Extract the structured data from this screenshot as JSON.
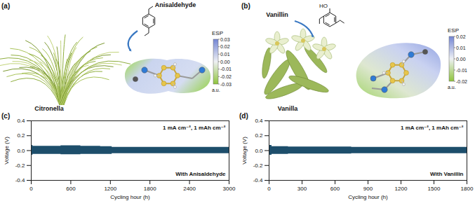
{
  "illustrations": [
    {
      "label": "(a)",
      "molecule": "Anisaldehyde",
      "plant": "Citronella",
      "colorbar": {
        "title": "ESP",
        "unit": "a.u.",
        "range": [
          -0.03,
          0.03
        ],
        "ticks": [
          0.03,
          0.02,
          0.01,
          {
            "value": 0,
            "label": "0.00"
          },
          -0.01,
          -0.02,
          -0.03
        ]
      }
    },
    {
      "label": "(b)",
      "molecule": "Vanillin",
      "plant": "Vanilla",
      "structure_labels": [
        "HO"
      ],
      "colorbar": {
        "title": "ESP",
        "unit": "a.u.",
        "range": [
          -0.02,
          0.02
        ],
        "ticks": [
          0.02,
          0.01,
          {
            "value": 0,
            "label": "0.00"
          },
          -0.01,
          -0.02
        ]
      }
    }
  ],
  "chart_data": [
    {
      "type": "band",
      "title": "(c)",
      "x": [
        0,
        50,
        300,
        600,
        900,
        1200,
        1250,
        1500,
        1800,
        2100,
        2400,
        2700,
        3000
      ],
      "upper": [
        0.07,
        0.06,
        0.06,
        0.065,
        0.06,
        0.055,
        0.045,
        0.045,
        0.045,
        0.045,
        0.045,
        0.045,
        0.045
      ],
      "lower": [
        -0.06,
        -0.05,
        -0.05,
        -0.055,
        -0.05,
        -0.05,
        -0.04,
        -0.04,
        -0.04,
        -0.04,
        -0.04,
        -0.04,
        -0.04
      ],
      "color": "#1d4e6b",
      "xlim": [
        0,
        3000
      ],
      "xticks": [
        0,
        600,
        1200,
        1800,
        2400,
        3000
      ],
      "ylim": [
        -0.4,
        0.4
      ],
      "yticks": [
        -0.4,
        -0.2,
        {
          "value": 0,
          "label": "0.0"
        },
        0.2,
        0.4
      ],
      "xlabel": "Cycling hour (h)",
      "ylabel": "Voltage (V)",
      "annotations": [
        "1 mA cm⁻², 1 mAh cm⁻²",
        "With Anisaldehyde"
      ]
    },
    {
      "type": "band",
      "title": "(d)",
      "x": [
        0,
        50,
        300,
        600,
        900,
        1200,
        1500,
        1800
      ],
      "upper": [
        0.07,
        0.055,
        0.05,
        0.05,
        0.045,
        0.045,
        0.045,
        0.045
      ],
      "lower": [
        -0.06,
        -0.05,
        -0.045,
        -0.045,
        -0.04,
        -0.04,
        -0.04,
        -0.04
      ],
      "color": "#1d4e6b",
      "xlim": [
        0,
        1800
      ],
      "xticks": [
        0,
        300,
        600,
        900,
        1200,
        1500,
        1800
      ],
      "ylim": [
        -0.4,
        0.4
      ],
      "yticks": [
        -0.4,
        -0.2,
        {
          "value": 0,
          "label": "0.0"
        },
        0.2,
        0.4
      ],
      "xlabel": "Cycling hour (h)",
      "ylabel": "Voltage (V)",
      "annotations": [
        "1 mA cm⁻², 1 mAh cm⁻²",
        "With Vanillin"
      ]
    }
  ]
}
